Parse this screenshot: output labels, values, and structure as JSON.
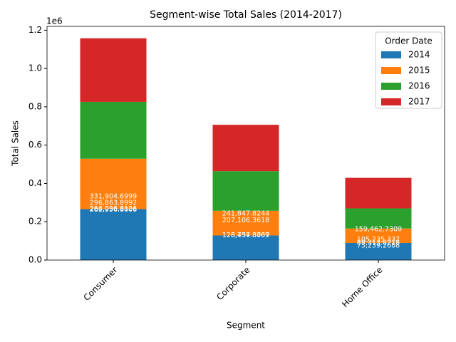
{
  "chart_data": {
    "type": "stacked_bar",
    "title": "Segment-wise Total Sales (2014-2017)",
    "x_label": "Segment",
    "y_label": "Total Sales",
    "y_offset_label": "1e6",
    "categories": [
      "Consumer",
      "Corporate",
      "Home Office"
    ],
    "legend_title": "Order Date",
    "legend_position": "upper-right",
    "series": [
      {
        "name": "2014",
        "color": "#1f77b4",
        "values": [
          266096.8126,
          128434.8707,
          89313.8218
        ],
        "value_labels": [
          "266,096.8126",
          "128,434.8707",
          "89,313.8218"
        ]
      },
      {
        "name": "2015",
        "color": "#ff7f0e",
        "values": [
          262956.8006,
          128757.3069,
          75239.2688
        ],
        "value_labels": [
          "262,956.8006",
          "128,757.3069",
          "75,239.2688"
        ]
      },
      {
        "name": "2016",
        "color": "#2ca02c",
        "values": [
          296863.8992,
          207106.3618,
          105235.337
        ],
        "value_labels": [
          "296,863.8992",
          "207,106.3618",
          "105,235.337"
        ]
      },
      {
        "name": "2017",
        "color": "#d62728",
        "values": [
          331904.6999,
          241847.8244,
          159462.7309
        ],
        "value_labels": [
          "331,904.6999",
          "241,847.8244",
          "159,462.7309"
        ]
      }
    ],
    "ylim": [
      0,
      1220000
    ],
    "yticks": [
      {
        "value": 0,
        "label": "0.0"
      },
      {
        "value": 200000,
        "label": "0.2"
      },
      {
        "value": 400000,
        "label": "0.4"
      },
      {
        "value": 600000,
        "label": "0.6"
      },
      {
        "value": 800000,
        "label": "0.8"
      },
      {
        "value": 1000000,
        "label": "1.0"
      },
      {
        "value": 1200000,
        "label": "1.2"
      }
    ]
  }
}
